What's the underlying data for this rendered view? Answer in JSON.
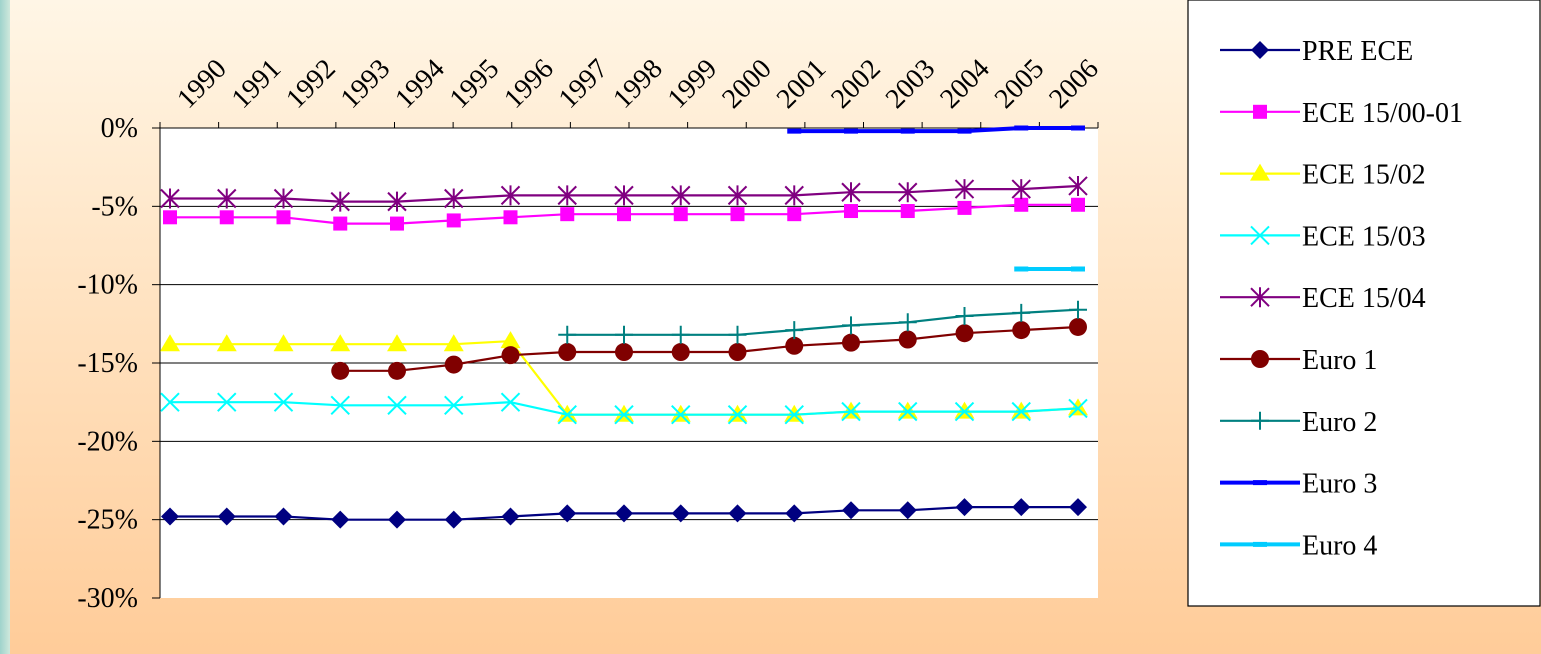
{
  "chart_data": {
    "type": "line",
    "title": "",
    "xlabel": "",
    "ylabel": "",
    "x_axis_position": "top",
    "categories": [
      "1990",
      "1991",
      "1992",
      "1993",
      "1994",
      "1995",
      "1996",
      "1997",
      "1998",
      "1999",
      "2000",
      "2001",
      "2002",
      "2003",
      "2004",
      "2005",
      "2006"
    ],
    "y_ticks": [
      "0%",
      "-5%",
      "-10%",
      "-15%",
      "-20%",
      "-25%",
      "-30%"
    ],
    "ylim": [
      -30,
      0
    ],
    "grid": "horizontal",
    "legend_position": "right",
    "series": [
      {
        "name": "PRE ECE",
        "color": "#000080",
        "marker": "diamond",
        "values": [
          -24.8,
          -24.8,
          -24.8,
          -25.0,
          -25.0,
          -25.0,
          -24.8,
          -24.6,
          -24.6,
          -24.6,
          -24.6,
          -24.6,
          -24.4,
          -24.4,
          -24.2,
          -24.2,
          -24.2
        ]
      },
      {
        "name": "ECE 15/00-01",
        "color": "#ff00ff",
        "marker": "square",
        "values": [
          -5.7,
          -5.7,
          -5.7,
          -6.1,
          -6.1,
          -5.9,
          -5.7,
          -5.5,
          -5.5,
          -5.5,
          -5.5,
          -5.5,
          -5.3,
          -5.3,
          -5.1,
          -4.9,
          -4.9
        ]
      },
      {
        "name": "ECE 15/02",
        "color": "#ffff00",
        "marker": "triangle",
        "values": [
          -13.8,
          -13.8,
          -13.8,
          -13.8,
          -13.8,
          -13.8,
          -13.6,
          -18.3,
          -18.3,
          -18.3,
          -18.3,
          -18.3,
          -18.1,
          -18.1,
          -18.1,
          -18.1,
          -17.9
        ]
      },
      {
        "name": "ECE 15/03",
        "color": "#00ffff",
        "marker": "x",
        "values": [
          -17.5,
          -17.5,
          -17.5,
          -17.7,
          -17.7,
          -17.7,
          -17.5,
          -18.3,
          -18.3,
          -18.3,
          -18.3,
          -18.3,
          -18.1,
          -18.1,
          -18.1,
          -18.1,
          -17.9
        ]
      },
      {
        "name": "ECE 15/04",
        "color": "#800080",
        "marker": "star",
        "values": [
          -4.5,
          -4.5,
          -4.5,
          -4.7,
          -4.7,
          -4.5,
          -4.3,
          -4.3,
          -4.3,
          -4.3,
          -4.3,
          -4.3,
          -4.1,
          -4.1,
          -3.9,
          -3.9,
          -3.7
        ]
      },
      {
        "name": "Euro 1",
        "color": "#800000",
        "marker": "circle",
        "values": [
          null,
          null,
          null,
          -15.5,
          -15.5,
          -15.1,
          -14.5,
          -14.3,
          -14.3,
          -14.3,
          -14.3,
          -13.9,
          -13.7,
          -13.5,
          -13.1,
          -12.9,
          -12.7
        ]
      },
      {
        "name": "Euro 2",
        "color": "#008080",
        "marker": "plus",
        "values": [
          null,
          null,
          null,
          null,
          null,
          null,
          null,
          -13.2,
          -13.2,
          -13.2,
          -13.2,
          -12.9,
          -12.6,
          -12.4,
          -12.0,
          -11.8,
          -11.6
        ]
      },
      {
        "name": "Euro 3",
        "color": "#0000ff",
        "marker": "dash",
        "values": [
          null,
          null,
          null,
          null,
          null,
          null,
          null,
          null,
          null,
          null,
          null,
          -0.2,
          -0.2,
          -0.2,
          -0.2,
          0.0,
          0.0
        ]
      },
      {
        "name": "Euro 4",
        "color": "#00ccff",
        "marker": "dash",
        "values": [
          null,
          null,
          null,
          null,
          null,
          null,
          null,
          null,
          null,
          null,
          null,
          null,
          null,
          null,
          null,
          -9.0,
          -9.0
        ]
      }
    ]
  }
}
